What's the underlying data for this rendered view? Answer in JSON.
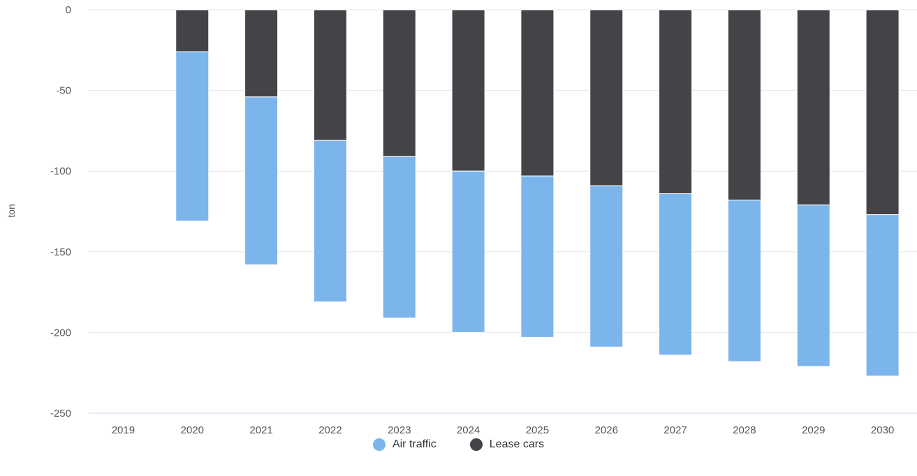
{
  "chart_data": {
    "type": "bar",
    "stacked": true,
    "categories": [
      "2019",
      "2020",
      "2021",
      "2022",
      "2023",
      "2024",
      "2025",
      "2026",
      "2027",
      "2028",
      "2029",
      "2030"
    ],
    "series": [
      {
        "name": "Lease cars",
        "color": "#434348",
        "values": [
          0,
          -26,
          -54,
          -81,
          -91,
          -100,
          -103,
          -109,
          -114,
          -118,
          -121,
          -127
        ]
      },
      {
        "name": "Air traffic",
        "color": "#7cb5ec",
        "values": [
          0,
          -105,
          -104,
          -100,
          -100,
          -100,
          -100,
          -100,
          -100,
          -100,
          -100,
          -100
        ]
      }
    ],
    "title": "",
    "xlabel": "",
    "ylabel": "ton",
    "ylim": [
      -250,
      0
    ],
    "yticks": [
      "0",
      "-50",
      "-100",
      "-150",
      "-200",
      "-250"
    ],
    "ytick_values": [
      0,
      -50,
      -100,
      -150,
      -200,
      -250
    ],
    "grid": true,
    "legend_placement": "bottom-center",
    "legend": [
      {
        "name": "Air traffic",
        "color": "#7cb5ec"
      },
      {
        "name": "Lease cars",
        "color": "#434348"
      }
    ]
  }
}
